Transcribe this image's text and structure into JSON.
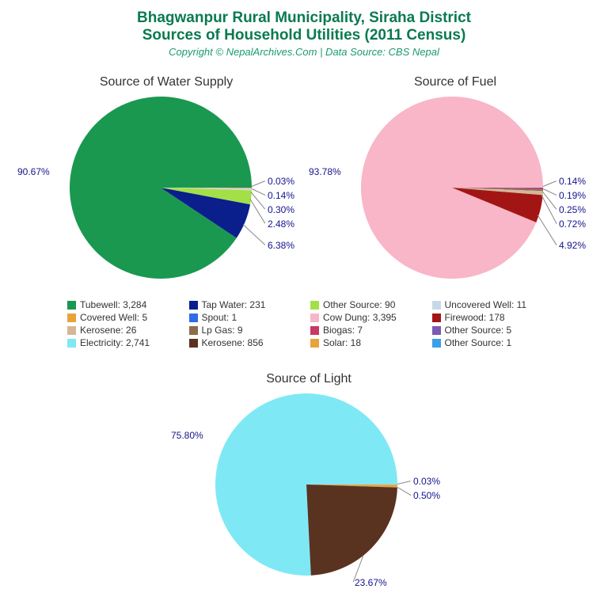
{
  "titles": {
    "main": "Bhagwanpur Rural Municipality, Siraha District",
    "sub": "Sources of Household Utilities (2011 Census)",
    "copyright": "Copyright © NepalArchives.Com | Data Source: CBS Nepal",
    "title_color": "#0a7a50",
    "copyright_color": "#1a9c6b"
  },
  "charts": {
    "water": {
      "title": "Source of Water Supply",
      "radius": 115,
      "slices": [
        {
          "pct": 90.67,
          "color": "#1a9850",
          "label": "90.67%"
        },
        {
          "pct": 0.03,
          "color": "#c9a0dc",
          "label": "0.03%"
        },
        {
          "pct": 0.14,
          "color": "#e8a33d",
          "label": "0.14%"
        },
        {
          "pct": 0.3,
          "color": "#c8d8e8",
          "label": "0.30%"
        },
        {
          "pct": 2.48,
          "color": "#a3e048",
          "label": "2.48%"
        },
        {
          "pct": 6.38,
          "color": "#0a1e8c",
          "label": "6.38%"
        }
      ]
    },
    "fuel": {
      "title": "Source of Fuel",
      "radius": 115,
      "slices": [
        {
          "pct": 93.78,
          "color": "#f8b6c8",
          "label": "93.78%"
        },
        {
          "pct": 0.14,
          "color": "#7b5bb3",
          "label": "0.14%"
        },
        {
          "pct": 0.19,
          "color": "#c93964",
          "label": "0.19%"
        },
        {
          "pct": 0.25,
          "color": "#8a6d4a",
          "label": "0.25%"
        },
        {
          "pct": 0.72,
          "color": "#d4b896",
          "label": "0.72%"
        },
        {
          "pct": 4.92,
          "color": "#a31515",
          "label": "4.92%"
        }
      ]
    },
    "light": {
      "title": "Source of Light",
      "radius": 115,
      "slices": [
        {
          "pct": 75.8,
          "color": "#7fe8f5",
          "label": "75.80%"
        },
        {
          "pct": 0.03,
          "color": "#3aa0e8",
          "label": "0.03%"
        },
        {
          "pct": 0.5,
          "color": "#e8a33d",
          "label": "0.50%"
        },
        {
          "pct": 23.67,
          "color": "#5a3220",
          "label": "23.67%"
        }
      ]
    }
  },
  "legend": [
    {
      "color": "#1a9850",
      "label": "Tubewell: 3,284"
    },
    {
      "color": "#0a1e8c",
      "label": "Tap Water: 231"
    },
    {
      "color": "#a3e048",
      "label": "Other Source: 90"
    },
    {
      "color": "#c8d8e8",
      "label": "Uncovered Well: 11"
    },
    {
      "color": "#e8a33d",
      "label": "Covered Well: 5"
    },
    {
      "color": "#2e6be8",
      "label": "Spout: 1"
    },
    {
      "color": "#f8b6c8",
      "label": "Cow Dung: 3,395"
    },
    {
      "color": "#a31515",
      "label": "Firewood: 178"
    },
    {
      "color": "#d4b896",
      "label": "Kerosene: 26"
    },
    {
      "color": "#8a6d4a",
      "label": "Lp Gas: 9"
    },
    {
      "color": "#c93964",
      "label": "Biogas: 7"
    },
    {
      "color": "#7b5bb3",
      "label": "Other Source: 5"
    },
    {
      "color": "#7fe8f5",
      "label": "Electricity: 2,741"
    },
    {
      "color": "#5a3220",
      "label": "Kerosene: 856"
    },
    {
      "color": "#e8a33d",
      "label": "Solar: 18"
    },
    {
      "color": "#3aa0e8",
      "label": "Other Source: 1"
    }
  ]
}
